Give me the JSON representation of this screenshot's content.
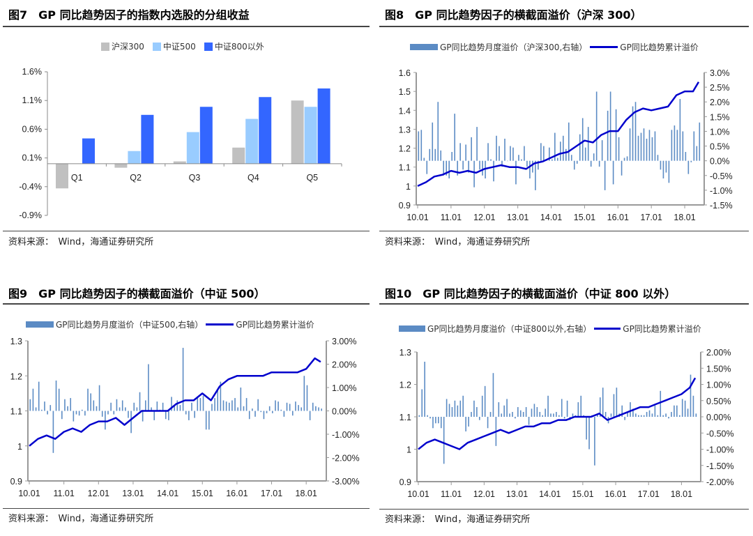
{
  "source_label": "资料来源：",
  "source_text": "Wind，海通证券研究所",
  "chart_data": [
    {
      "id": "fig7",
      "type": "bar",
      "title": "图7　GP 同比趋势因子的指数内选股的分组收益",
      "categories": [
        "Q1",
        "Q2",
        "Q3",
        "Q4",
        "Q5"
      ],
      "series": [
        {
          "name": "沪深300",
          "color": "#c0c0c0",
          "values": [
            -0.43,
            -0.07,
            0.04,
            0.28,
            1.1
          ]
        },
        {
          "name": "中证500",
          "color": "#99ccff",
          "values": [
            0.0,
            0.22,
            0.55,
            0.78,
            0.99
          ]
        },
        {
          "name": "中证800以外",
          "color": "#3366ff",
          "values": [
            0.44,
            0.85,
            0.99,
            1.16,
            1.31
          ]
        }
      ],
      "ylim": [
        -0.9,
        1.6
      ],
      "yticks": [
        "1.6%",
        "1.1%",
        "0.6%",
        "0.1%",
        "-0.4%",
        "-0.9%"
      ],
      "unit": "%",
      "legend": "top"
    },
    {
      "id": "fig8",
      "type": "bar+line",
      "title": "图8　GP 同比趋势因子的横截面溢价（沪深 300）",
      "bar_name": "GP同比趋势月度溢价（沪深300,右轴）",
      "line_name": "GP同比趋势累计溢价",
      "bar_color": "#5b8bc4",
      "line_color": "#0000cc",
      "x_start": "2010-01",
      "x_ticks": [
        "10.01",
        "11.01",
        "12.01",
        "13.01",
        "14.01",
        "15.01",
        "16.01",
        "17.01",
        "18.01"
      ],
      "ylim_left": [
        0.9,
        1.6
      ],
      "yticks_left": [
        "1.6",
        "1.5",
        "1.4",
        "1.3",
        "1.2",
        "1.1",
        "1",
        "0.9"
      ],
      "ylim_right": [
        -1.5,
        3.0
      ],
      "yticks_right": [
        "3.0%",
        "2.5%",
        "2.0%",
        "1.5%",
        "1.0%",
        "0.5%",
        "0.0%",
        "-0.5%",
        "-1.0%",
        "-1.5%"
      ],
      "line_quarterly": [
        1.0,
        1.02,
        1.05,
        1.06,
        1.08,
        1.07,
        1.08,
        1.07,
        1.09,
        1.1,
        1.11,
        1.1,
        1.1,
        1.09,
        1.12,
        1.13,
        1.15,
        1.17,
        1.18,
        1.21,
        1.24,
        1.23,
        1.27,
        1.29,
        1.29,
        1.35,
        1.39,
        1.41,
        1.4,
        1.41,
        1.42,
        1.48,
        1.5,
        1.5,
        1.55
      ],
      "bars_monthly": [
        1.0,
        1.05,
        0.1,
        -0.45,
        0.4,
        1.3,
        0.4,
        2.0,
        0.35,
        -0.5,
        -0.5,
        -0.6,
        0.3,
        1.6,
        -0.5,
        0.6,
        -0.3,
        0.55,
        -0.4,
        0.8,
        -0.9,
        1.15,
        -0.3,
        -0.5,
        -0.6,
        0.6,
        0.05,
        -0.7,
        0.85,
        0.5,
        -0.2,
        0.75,
        0,
        0.5,
        0.45,
        -0.8,
        0.2,
        0.05,
        0.5,
        -0.2,
        -0.6,
        -0.4,
        -1.0,
        -0.3,
        0.6,
        0.5,
        0.05,
        0.45,
        0.05,
        0.95,
        0.1,
        0.65,
        0.85,
        0.4,
        1.3,
        0.2,
        -0.3,
        -0.1,
        0.9,
        1.45,
        0.45,
        1.15,
        -0.2,
        0.25,
        2.35,
        -0.2,
        0.7,
        -1.0,
        1.7,
        2.35,
        -0.8,
        1.75,
        0.8,
        -0.5,
        0.1,
        0.15,
        1.1,
        1.85,
        2.0,
        0.85,
        0.95,
        1.1,
        0.75,
        1.05,
        0.8,
        1.0,
        0.2,
        -0.3,
        -0.6,
        -0.4,
        -0.75,
        1.05,
        1.2,
        1.05,
        2.1,
        1.0,
        0.3,
        -0.45,
        -0.05,
        1.0,
        0.5,
        1.3
      ]
    },
    {
      "id": "fig9",
      "type": "bar+line",
      "title": "图9　GP 同比趋势因子的横截面溢价（中证 500）",
      "bar_name": "GP同比趋势月度溢价（中证500,右轴）",
      "line_name": "GP同比趋势累计溢价",
      "bar_color": "#5b8bc4",
      "line_color": "#0000cc",
      "x_start": "2010-01",
      "x_ticks": [
        "10.01",
        "11.01",
        "12.01",
        "13.01",
        "14.01",
        "15.01",
        "16.01",
        "17.01",
        "18.01"
      ],
      "ylim_left": [
        0.9,
        1.3
      ],
      "yticks_left": [
        "1.3",
        "1.2",
        "1.1",
        "1",
        "0.9"
      ],
      "ylim_right": [
        -3.0,
        3.0
      ],
      "yticks_right": [
        "3.00%",
        "2.00%",
        "1.00%",
        "0.00%",
        "-1.00%",
        "-2.00%",
        "-3.00%"
      ],
      "line_quarterly": [
        1.0,
        1.02,
        1.03,
        1.02,
        1.04,
        1.05,
        1.04,
        1.06,
        1.07,
        1.07,
        1.08,
        1.06,
        1.08,
        1.1,
        1.1,
        1.1,
        1.1,
        1.12,
        1.13,
        1.13,
        1.15,
        1.13,
        1.17,
        1.19,
        1.2,
        1.2,
        1.2,
        1.2,
        1.21,
        1.21,
        1.21,
        1.21,
        1.22,
        1.25,
        1.24
      ],
      "bars_monthly": [
        0.5,
        0.95,
        0.15,
        1.25,
        0.05,
        0.4,
        -0.15,
        0.25,
        -1.8,
        1.3,
        0.95,
        -0.35,
        0.5,
        0.2,
        0.55,
        -0.45,
        -0.15,
        -0.2,
        0.05,
        -0.2,
        0.95,
        0.75,
        0.45,
        0.2,
        1.1,
        -0.25,
        -0.8,
        -0.15,
        0.35,
        -0.15,
        0.5,
        0.15,
        0.45,
        0.15,
        -0.3,
        -0.95,
        0.35,
        0.15,
        0.8,
        -0.45,
        0.45,
        2.0,
        0.15,
        -0.4,
        0.4,
        0.05,
        0.35,
        -0.35,
        -0.4,
        0.6,
        0.25,
        0.45,
        0.25,
        2.7,
        -0.15,
        -0.4,
        0.35,
        -0.3,
        0.55,
        0.55,
        0.65,
        -0.8,
        -0.8,
        0.3,
        0.55,
        0.95,
        1.25,
        0.45,
        0.4,
        0.35,
        0.45,
        0.55,
        0.15,
        1.0,
        0.2,
        0.55,
        -0.35,
        0.1,
        -0.25,
        0.5,
        -0.05,
        -0.35,
        -0.1,
        0.2,
        -0.1,
        0.45,
        0.4,
        0.05,
        -0.25,
        0.35,
        0.3,
        -0.2,
        0.4,
        0.25,
        0.15,
        1.5,
        1.1,
        -0.4,
        0.35,
        0.2,
        0.15,
        0.1
      ]
    },
    {
      "id": "fig10",
      "type": "bar+line",
      "title": "图10　GP 同比趋势因子的横截面溢价（中证 800 以外）",
      "bar_name": "GP同比趋势月度溢价（中证800以外,右轴）",
      "line_name": "GP同比趋势累计溢价",
      "bar_color": "#5b8bc4",
      "line_color": "#0000cc",
      "x_start": "2010-01",
      "x_ticks": [
        "10.01",
        "11.01",
        "12.01",
        "13.01",
        "14.01",
        "15.01",
        "16.01",
        "17.01",
        "18.01"
      ],
      "ylim_left": [
        0.9,
        1.3
      ],
      "yticks_left": [
        "1.3",
        "1.2",
        "1.1",
        "1",
        "0.9"
      ],
      "ylim_right": [
        -2.0,
        2.0
      ],
      "yticks_right": [
        "2.00%",
        "1.50%",
        "1.00%",
        "0.50%",
        "0.00%",
        "-0.50%",
        "-1.00%",
        "-1.50%",
        "-2.00%"
      ],
      "line_quarterly": [
        1.0,
        1.02,
        1.03,
        1.02,
        1.01,
        1.0,
        1.02,
        1.03,
        1.04,
        1.05,
        1.06,
        1.05,
        1.06,
        1.07,
        1.07,
        1.08,
        1.08,
        1.09,
        1.09,
        1.1,
        1.1,
        1.1,
        1.11,
        1.09,
        1.1,
        1.11,
        1.12,
        1.13,
        1.13,
        1.14,
        1.15,
        1.16,
        1.17,
        1.19,
        1.22
      ],
      "bars_monthly": [
        0.05,
        0.85,
        1.7,
        0.05,
        -0.05,
        -0.35,
        -0.2,
        -0.2,
        -0.35,
        -1.45,
        0.55,
        0.4,
        0.3,
        0.5,
        0.35,
        0.5,
        0.65,
        -0.45,
        -0.3,
        0.15,
        0.5,
        0.3,
        -0.1,
        0.65,
        0.95,
        -0.35,
        0.15,
        1.35,
        -0.9,
        0.45,
        0.1,
        0.35,
        0.55,
        0.1,
        0.15,
        -0.05,
        0.3,
        0.2,
        0.15,
        0.3,
        -0.25,
        0.25,
        0.4,
        0.3,
        0.15,
        0.05,
        0.25,
        0.65,
        0.1,
        0.1,
        0.15,
        0.05,
        0.55,
        -0.05,
        0.5,
        -0.1,
        0.1,
        0.05,
        0.45,
        0.65,
        0.05,
        -0.7,
        -1.0,
        0.05,
        -1.5,
        0.1,
        0.6,
        0.9,
        0.15,
        -0.2,
        0.1,
        0.7,
        0.9,
        0.1,
        0.35,
        -0.1,
        0.15,
        0.45,
        0.25,
        0.1,
        0.05,
        0.05,
        0.05,
        0.15,
        0.2,
        0.1,
        0.35,
        0.05,
        0.8,
        0.05,
        0.1,
        -0.05,
        0.15,
        0.35,
        0.35,
        0.05,
        0.55,
        0.5,
        0.25,
        1.3,
        0.65,
        0.1
      ]
    }
  ]
}
